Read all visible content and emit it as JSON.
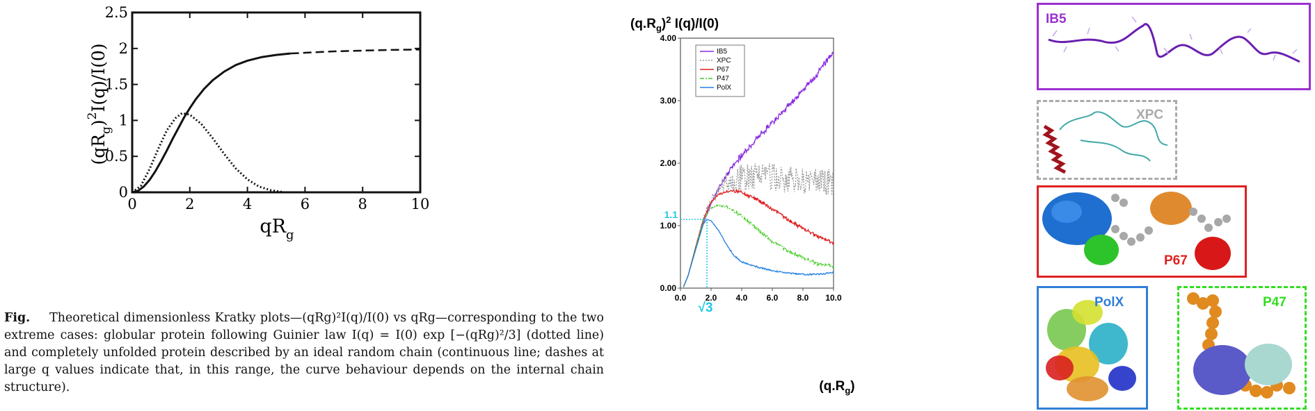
{
  "chart_data": [
    {
      "type": "line",
      "title": "",
      "xlabel": "qR_g",
      "ylabel": "(qR_g)^2 I(q)/I(0)",
      "xlim": [
        0,
        10
      ],
      "ylim": [
        0,
        2.5
      ],
      "x_ticks": [
        "0",
        "2",
        "4",
        "6",
        "8",
        "10"
      ],
      "y_ticks": [
        "0",
        "0.5",
        "1",
        "1.5",
        "2",
        "2.5"
      ],
      "grid": false,
      "legend": "none",
      "series": [
        {
          "style": "solid-then-dashed",
          "dash_from": 5.3,
          "points": [
            [
              0,
              0
            ],
            [
              0.2,
              0.02
            ],
            [
              0.4,
              0.08
            ],
            [
              0.6,
              0.17
            ],
            [
              0.8,
              0.29
            ],
            [
              1.0,
              0.43
            ],
            [
              1.2,
              0.58
            ],
            [
              1.4,
              0.74
            ],
            [
              1.6,
              0.89
            ],
            [
              1.8,
              1.04
            ],
            [
              2.0,
              1.17
            ],
            [
              2.2,
              1.29
            ],
            [
              2.5,
              1.44
            ],
            [
              2.8,
              1.56
            ],
            [
              3.2,
              1.68
            ],
            [
              3.6,
              1.77
            ],
            [
              4.0,
              1.83
            ],
            [
              4.5,
              1.88
            ],
            [
              5.0,
              1.91
            ],
            [
              5.5,
              1.93
            ],
            [
              6.0,
              1.94
            ],
            [
              7.0,
              1.96
            ],
            [
              8.0,
              1.97
            ],
            [
              9.0,
              1.98
            ],
            [
              10.0,
              1.985
            ]
          ]
        },
        {
          "style": "dotted",
          "points": [
            [
              0,
              0
            ],
            [
              0.3,
              0.09
            ],
            [
              0.6,
              0.32
            ],
            [
              0.9,
              0.6
            ],
            [
              1.2,
              0.86
            ],
            [
              1.5,
              1.03
            ],
            [
              1.73,
              1.1
            ],
            [
              2.0,
              1.08
            ],
            [
              2.4,
              0.95
            ],
            [
              2.8,
              0.75
            ],
            [
              3.2,
              0.53
            ],
            [
              3.6,
              0.33
            ],
            [
              4.0,
              0.18
            ],
            [
              4.4,
              0.08
            ],
            [
              4.8,
              0.03
            ],
            [
              5.2,
              0.005
            ]
          ]
        }
      ]
    },
    {
      "type": "line",
      "title": "",
      "ylabel": "(q.Rg)² I(q)/I(0)",
      "xlabel": "(q.Rg)",
      "xlim": [
        0,
        10
      ],
      "ylim": [
        0,
        4
      ],
      "x_ticks": [
        "0.0",
        "2.0",
        "4.0",
        "6.0",
        "8.0",
        "10.0"
      ],
      "y_ticks": [
        "0.00",
        "1.00",
        "2.00",
        "3.00",
        "4.00"
      ],
      "legend": "top-left",
      "grid": false,
      "annotations": [
        {
          "text": "1.1",
          "x": 1.73,
          "y": 1.1,
          "color": "#1ec8e6"
        },
        {
          "text": "√3",
          "x": 1.73,
          "y": 0,
          "color": "#1ec8e6"
        }
      ],
      "series": [
        {
          "name": "IB5",
          "color": "#8a2be2",
          "style": "solid",
          "points": [
            [
              0.2,
              0.02
            ],
            [
              0.5,
              0.2
            ],
            [
              1.0,
              0.65
            ],
            [
              1.5,
              1.05
            ],
            [
              2.0,
              1.35
            ],
            [
              2.5,
              1.6
            ],
            [
              3.0,
              1.8
            ],
            [
              3.5,
              1.98
            ],
            [
              4.0,
              2.13
            ],
            [
              5.0,
              2.4
            ],
            [
              6.0,
              2.65
            ],
            [
              7.0,
              2.9
            ],
            [
              8.0,
              3.15
            ],
            [
              9.0,
              3.45
            ],
            [
              10.0,
              3.8
            ]
          ]
        },
        {
          "name": "XPC",
          "color": "#999999",
          "style": "dotted",
          "points": [
            [
              0.2,
              0.02
            ],
            [
              0.5,
              0.2
            ],
            [
              1.0,
              0.68
            ],
            [
              1.5,
              1.12
            ],
            [
              2.0,
              1.42
            ],
            [
              2.5,
              1.58
            ],
            [
              3.0,
              1.7
            ],
            [
              4.0,
              1.78
            ],
            [
              5.0,
              1.8
            ],
            [
              6.0,
              1.78
            ],
            [
              7.0,
              1.74
            ],
            [
              8.0,
              1.7
            ],
            [
              9.0,
              1.72
            ],
            [
              10.0,
              1.7
            ]
          ]
        },
        {
          "name": "P67",
          "color": "#e02020",
          "style": "solid",
          "points": [
            [
              0.2,
              0.02
            ],
            [
              0.5,
              0.2
            ],
            [
              1.0,
              0.66
            ],
            [
              1.5,
              1.1
            ],
            [
              2.0,
              1.38
            ],
            [
              2.5,
              1.5
            ],
            [
              3.0,
              1.54
            ],
            [
              3.5,
              1.55
            ],
            [
              4.0,
              1.53
            ],
            [
              5.0,
              1.42
            ],
            [
              6.0,
              1.27
            ],
            [
              7.0,
              1.1
            ],
            [
              8.0,
              0.95
            ],
            [
              9.0,
              0.82
            ],
            [
              10.0,
              0.72
            ]
          ]
        },
        {
          "name": "P47",
          "color": "#44cc22",
          "style": "dash-dot",
          "points": [
            [
              0.2,
              0.02
            ],
            [
              0.5,
              0.2
            ],
            [
              1.0,
              0.65
            ],
            [
              1.5,
              1.08
            ],
            [
              2.0,
              1.28
            ],
            [
              2.5,
              1.33
            ],
            [
              3.0,
              1.3
            ],
            [
              4.0,
              1.15
            ],
            [
              5.0,
              0.95
            ],
            [
              6.0,
              0.75
            ],
            [
              7.0,
              0.6
            ],
            [
              8.0,
              0.48
            ],
            [
              9.0,
              0.38
            ],
            [
              10.0,
              0.35
            ]
          ]
        },
        {
          "name": "PolX",
          "color": "#2080e0",
          "style": "solid",
          "points": [
            [
              0.2,
              0.02
            ],
            [
              0.5,
              0.2
            ],
            [
              1.0,
              0.62
            ],
            [
              1.5,
              1.03
            ],
            [
              1.75,
              1.1
            ],
            [
              2.0,
              1.08
            ],
            [
              2.5,
              0.92
            ],
            [
              3.0,
              0.7
            ],
            [
              3.5,
              0.52
            ],
            [
              4.0,
              0.42
            ],
            [
              5.0,
              0.34
            ],
            [
              6.0,
              0.28
            ],
            [
              7.0,
              0.24
            ],
            [
              8.0,
              0.22
            ],
            [
              9.0,
              0.22
            ],
            [
              10.0,
              0.25
            ]
          ]
        }
      ]
    }
  ],
  "caption": {
    "label": "Fig.",
    "text": "Theoretical dimensionless Kratky plots—(qRg)²I(q)/I(0) vs qRg—corresponding to the two extreme cases: globular protein following Guinier law I(q) = I(0) exp [−(qRg)²/3] (dotted line) and completely unfolded protein described by an ideal random chain (continuous line; dashes at large q values indicate that, in this range, the curve behaviour depends on the internal chain structure)."
  },
  "structure_panels": [
    {
      "label": "IB5",
      "color": "#9b30d0",
      "border": "solid"
    },
    {
      "label": "XPC",
      "color": "#aaaaaa",
      "border": "dashed"
    },
    {
      "label": "P67",
      "color": "#e02020",
      "border": "solid"
    },
    {
      "label": "PolX",
      "color": "#2f7fd8",
      "border": "solid"
    },
    {
      "label": "P47",
      "color": "#33dd22",
      "border": "dash-dot"
    }
  ]
}
